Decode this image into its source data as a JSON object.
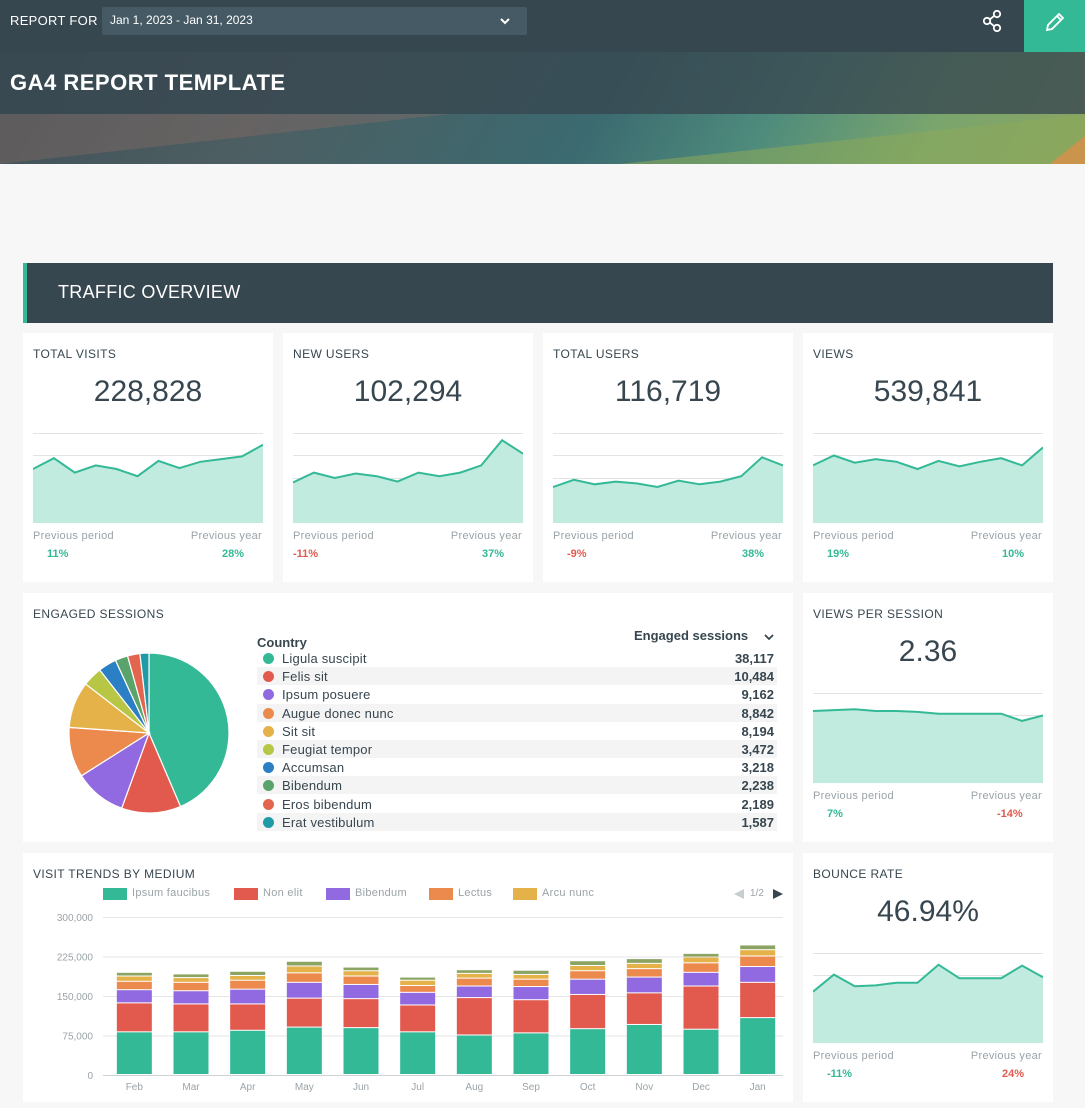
{
  "header": {
    "report_for_label": "REPORT FOR",
    "date_range": "Jan 1, 2023 - Jan 31, 2023",
    "title": "GA4 REPORT TEMPLATE"
  },
  "section_title": "TRAFFIC OVERVIEW",
  "colors": {
    "accent": "#34b997",
    "dark": "#37474f",
    "positive": "#34b997",
    "negative": "#e25a4e",
    "area": "#c2ebdf"
  },
  "kpis": [
    {
      "label": "TOTAL VISITS",
      "value": "228,828",
      "prev_period_label": "Previous period",
      "prev_year_label": "Previous year",
      "prev_period": "11%",
      "prev_year": "28%",
      "prev_period_sign": "pos",
      "prev_year_sign": "pos",
      "trend": [
        6,
        7.2,
        5.6,
        6.4,
        6.0,
        5.2,
        6.9,
        6.1,
        6.8,
        7.1,
        7.4,
        8.7
      ]
    },
    {
      "label": "NEW USERS",
      "value": "102,294",
      "prev_period_label": "Previous period",
      "prev_year_label": "Previous year",
      "prev_period": "-11%",
      "prev_year": "37%",
      "prev_period_sign": "neg",
      "prev_year_sign": "pos",
      "trend": [
        4.5,
        5.6,
        5.0,
        5.5,
        5.2,
        4.6,
        5.6,
        5.2,
        5.6,
        6.4,
        9.2,
        7.7
      ]
    },
    {
      "label": "TOTAL USERS",
      "value": "116,719",
      "prev_period_label": "Previous period",
      "prev_year_label": "Previous year",
      "prev_period": "-9%",
      "prev_year": "38%",
      "prev_period_sign": "neg",
      "prev_year_sign": "pos",
      "trend": [
        4.0,
        4.8,
        4.3,
        4.6,
        4.4,
        4.0,
        4.7,
        4.3,
        4.6,
        5.2,
        7.3,
        6.4
      ]
    },
    {
      "label": "VIEWS",
      "value": "539,841",
      "prev_period_label": "Previous period",
      "prev_year_label": "Previous year",
      "prev_period": "19%",
      "prev_year": "10%",
      "prev_period_sign": "pos",
      "prev_year_sign": "pos",
      "trend": [
        6.4,
        7.5,
        6.7,
        7.1,
        6.8,
        6.0,
        6.9,
        6.3,
        6.8,
        7.2,
        6.4,
        8.4
      ]
    }
  ],
  "engaged": {
    "label": "ENGAGED SESSIONS",
    "col_country": "Country",
    "col_value": "Engaged sessions",
    "rows": [
      {
        "name": "Ligula suscipit",
        "value": "38,117",
        "num": 38117,
        "color": "#34b997"
      },
      {
        "name": "Felis sit",
        "value": "10,484",
        "num": 10484,
        "color": "#e25a4e"
      },
      {
        "name": "Ipsum posuere",
        "value": "9,162",
        "num": 9162,
        "color": "#9169e0"
      },
      {
        "name": "Augue donec nunc",
        "value": "8,842",
        "num": 8842,
        "color": "#ec8a4e"
      },
      {
        "name": "Sit sit",
        "value": "8,194",
        "num": 8194,
        "color": "#e5b24a"
      },
      {
        "name": "Feugiat tempor",
        "value": "3,472",
        "num": 3472,
        "color": "#b8c646"
      },
      {
        "name": "Accumsan",
        "value": "3,218",
        "num": 3218,
        "color": "#2b7fc4"
      },
      {
        "name": "Bibendum",
        "value": "2,238",
        "num": 2238,
        "color": "#5aa36a"
      },
      {
        "name": "Eros bibendum",
        "value": "2,189",
        "num": 2189,
        "color": "#e3654e"
      },
      {
        "name": "Erat vestibulum",
        "value": "1,587",
        "num": 1587,
        "color": "#1f9aa7"
      }
    ]
  },
  "views_per_session": {
    "label": "VIEWS PER SESSION",
    "value": "2.36",
    "prev_period_label": "Previous period",
    "prev_year_label": "Previous year",
    "prev_period": "7%",
    "prev_year": "-14%",
    "prev_period_sign": "pos",
    "prev_year_sign": "neg",
    "trend": [
      8.0,
      8.1,
      8.2,
      8.0,
      8.0,
      7.9,
      7.7,
      7.7,
      7.7,
      7.7,
      6.9,
      7.5
    ]
  },
  "bounce_rate": {
    "label": "BOUNCE RATE",
    "value": "46.94%",
    "prev_period_label": "Previous period",
    "prev_year_label": "Previous year",
    "prev_period": "-11%",
    "prev_year": "24%",
    "prev_period_sign": "pos",
    "prev_year_sign": "neg",
    "trend": [
      5.7,
      7.6,
      6.3,
      6.4,
      6.7,
      6.7,
      8.7,
      7.2,
      7.2,
      7.2,
      8.6,
      7.3
    ]
  },
  "visit_trends": {
    "label": "VISIT TRENDS BY MEDIUM",
    "pager": "1/2"
  },
  "chart_data": {
    "type": "bar",
    "stacked": true,
    "title": "VISIT TRENDS BY MEDIUM",
    "categories": [
      "Feb",
      "Mar",
      "Apr",
      "May",
      "Jun",
      "Jul",
      "Aug",
      "Sep",
      "Oct",
      "Nov",
      "Dec",
      "Jan"
    ],
    "ylim": [
      0,
      300000
    ],
    "yticks": [
      "300,000",
      "225,000",
      "150,000",
      "75,000",
      "0"
    ],
    "ytick_values": [
      300000,
      225000,
      150000,
      75000,
      0
    ],
    "legend_position": "top",
    "series": [
      {
        "name": "Ipsum faucibus",
        "color": "#34b997",
        "values": [
          81000,
          81000,
          84000,
          90000,
          89000,
          81000,
          75000,
          79000,
          87000,
          95000,
          86000,
          108000
        ]
      },
      {
        "name": "Non elit",
        "color": "#e25a4e",
        "values": [
          55000,
          53000,
          50000,
          55000,
          55000,
          51000,
          71000,
          63000,
          65000,
          60000,
          82000,
          67000
        ]
      },
      {
        "name": "Bibendum",
        "color": "#9169e0",
        "values": [
          25000,
          25000,
          28000,
          30000,
          27000,
          24000,
          22000,
          25000,
          29000,
          30000,
          26000,
          30000
        ]
      },
      {
        "name": "Lectus",
        "color": "#ec8a4e",
        "values": [
          16000,
          16000,
          17000,
          18000,
          16000,
          13000,
          15000,
          14000,
          16000,
          16000,
          18000,
          20000
        ]
      },
      {
        "name": "Arcu nunc",
        "color": "#e5b24a",
        "values": [
          10000,
          9000,
          9000,
          13000,
          10000,
          10000,
          9000,
          9000,
          10000,
          10000,
          11000,
          12000
        ]
      },
      {
        "name": "",
        "color": "#8ba462",
        "values": [
          7000,
          7000,
          8000,
          9000,
          7000,
          6000,
          7000,
          8000,
          9000,
          9000,
          7000,
          9000
        ]
      }
    ]
  }
}
